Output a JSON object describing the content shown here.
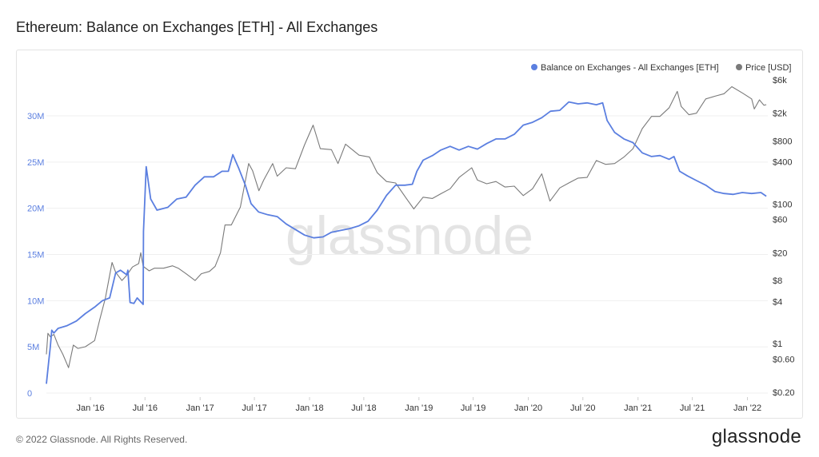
{
  "page_title": "Ethereum: Balance on Exchanges [ETH] - All Exchanges",
  "watermark": "glassnode",
  "footer": {
    "copyright": "© 2022 Glassnode. All Rights Reserved.",
    "brand": "glassnode"
  },
  "colors": {
    "balance": "#5b7fe0",
    "price": "#7a7a7a",
    "left_axis_text": "#5b7fe0",
    "right_axis_text": "#333333"
  },
  "chart_data": {
    "type": "line",
    "title": "Ethereum: Balance on Exchanges [ETH] - All Exchanges",
    "legend_position": "top-right",
    "grid": "horizontal",
    "x_type": "date",
    "x_range": [
      "2015-08-07",
      "2022-03-10"
    ],
    "x_ticks": [
      {
        "date": "2016-01-01",
        "label": "Jan '16"
      },
      {
        "date": "2016-07-01",
        "label": "Jul '16"
      },
      {
        "date": "2017-01-01",
        "label": "Jan '17"
      },
      {
        "date": "2017-07-01",
        "label": "Jul '17"
      },
      {
        "date": "2018-01-01",
        "label": "Jan '18"
      },
      {
        "date": "2018-07-01",
        "label": "Jul '18"
      },
      {
        "date": "2019-01-01",
        "label": "Jan '19"
      },
      {
        "date": "2019-07-01",
        "label": "Jul '19"
      },
      {
        "date": "2020-01-01",
        "label": "Jan '20"
      },
      {
        "date": "2020-07-01",
        "label": "Jul '20"
      },
      {
        "date": "2021-01-01",
        "label": "Jan '21"
      },
      {
        "date": "2021-07-01",
        "label": "Jul '21"
      },
      {
        "date": "2022-01-01",
        "label": "Jan '22"
      }
    ],
    "y_left": {
      "ylim": [
        0,
        35000000
      ],
      "ticks": [
        {
          "value": 0,
          "label": "0"
        },
        {
          "value": 5000000,
          "label": "5M"
        },
        {
          "value": 10000000,
          "label": "10M"
        },
        {
          "value": 15000000,
          "label": "15M"
        },
        {
          "value": 20000000,
          "label": "20M"
        },
        {
          "value": 25000000,
          "label": "25M"
        },
        {
          "value": 30000000,
          "label": "30M"
        }
      ]
    },
    "y_right": {
      "scale": "log",
      "ylim": [
        0.18,
        6500
      ],
      "ticks": [
        {
          "value": 0.2,
          "label": "$0.20"
        },
        {
          "value": 0.6,
          "label": "$0.60"
        },
        {
          "value": 1,
          "label": "$1"
        },
        {
          "value": 4,
          "label": "$4"
        },
        {
          "value": 8,
          "label": "$8"
        },
        {
          "value": 20,
          "label": "$20"
        },
        {
          "value": 60,
          "label": "$60"
        },
        {
          "value": 100,
          "label": "$100"
        },
        {
          "value": 400,
          "label": "$400"
        },
        {
          "value": 800,
          "label": "$800"
        },
        {
          "value": 2000,
          "label": "$2k"
        },
        {
          "value": 6000,
          "label": "$6k"
        }
      ]
    },
    "series": [
      {
        "name": "Balance on Exchanges - All Exchanges [ETH]",
        "axis": "left",
        "color": "#5b7fe0",
        "points": [
          [
            "2015-08-07",
            1000000
          ],
          [
            "2015-08-15",
            3500000
          ],
          [
            "2015-08-20",
            5000000
          ],
          [
            "2015-08-25",
            6800000
          ],
          [
            "2015-09-01",
            6500000
          ],
          [
            "2015-09-15",
            7000000
          ],
          [
            "2015-10-15",
            7300000
          ],
          [
            "2015-11-15",
            7800000
          ],
          [
            "2015-12-15",
            8600000
          ],
          [
            "2016-01-15",
            9300000
          ],
          [
            "2016-02-10",
            10000000
          ],
          [
            "2016-03-05",
            10300000
          ],
          [
            "2016-03-25",
            13000000
          ],
          [
            "2016-04-10",
            13300000
          ],
          [
            "2016-05-01",
            12800000
          ],
          [
            "2016-05-05",
            13300000
          ],
          [
            "2016-05-12",
            9800000
          ],
          [
            "2016-05-25",
            9700000
          ],
          [
            "2016-06-05",
            10300000
          ],
          [
            "2016-06-25",
            9600000
          ],
          [
            "2016-06-26",
            17500000
          ],
          [
            "2016-07-05",
            24500000
          ],
          [
            "2016-07-20",
            21000000
          ],
          [
            "2016-08-10",
            19800000
          ],
          [
            "2016-09-15",
            20100000
          ],
          [
            "2016-10-15",
            21000000
          ],
          [
            "2016-11-15",
            21200000
          ],
          [
            "2016-12-15",
            22500000
          ],
          [
            "2017-01-15",
            23400000
          ],
          [
            "2017-02-15",
            23400000
          ],
          [
            "2017-03-15",
            24000000
          ],
          [
            "2017-04-05",
            24000000
          ],
          [
            "2017-04-20",
            25800000
          ],
          [
            "2017-05-10",
            24300000
          ],
          [
            "2017-06-01",
            22500000
          ],
          [
            "2017-06-20",
            20500000
          ],
          [
            "2017-07-15",
            19600000
          ],
          [
            "2017-08-15",
            19300000
          ],
          [
            "2017-09-15",
            19100000
          ],
          [
            "2017-10-15",
            18300000
          ],
          [
            "2017-11-15",
            17700000
          ],
          [
            "2017-12-15",
            17100000
          ],
          [
            "2018-01-15",
            16800000
          ],
          [
            "2018-02-15",
            16900000
          ],
          [
            "2018-03-15",
            17400000
          ],
          [
            "2018-04-15",
            17600000
          ],
          [
            "2018-05-15",
            17800000
          ],
          [
            "2018-06-15",
            18100000
          ],
          [
            "2018-07-15",
            18600000
          ],
          [
            "2018-08-15",
            19800000
          ],
          [
            "2018-09-15",
            21400000
          ],
          [
            "2018-10-15",
            22500000
          ],
          [
            "2018-11-15",
            22500000
          ],
          [
            "2018-12-10",
            22600000
          ],
          [
            "2018-12-25",
            24000000
          ],
          [
            "2019-01-15",
            25200000
          ],
          [
            "2019-02-15",
            25700000
          ],
          [
            "2019-03-15",
            26300000
          ],
          [
            "2019-04-15",
            26700000
          ],
          [
            "2019-05-15",
            26300000
          ],
          [
            "2019-06-15",
            26700000
          ],
          [
            "2019-07-15",
            26400000
          ],
          [
            "2019-08-15",
            27000000
          ],
          [
            "2019-09-15",
            27500000
          ],
          [
            "2019-10-15",
            27500000
          ],
          [
            "2019-11-15",
            28000000
          ],
          [
            "2019-12-15",
            29000000
          ],
          [
            "2020-01-15",
            29300000
          ],
          [
            "2020-02-15",
            29800000
          ],
          [
            "2020-03-15",
            30500000
          ],
          [
            "2020-04-15",
            30600000
          ],
          [
            "2020-05-15",
            31500000
          ],
          [
            "2020-06-15",
            31300000
          ],
          [
            "2020-07-15",
            31400000
          ],
          [
            "2020-08-15",
            31200000
          ],
          [
            "2020-09-05",
            31400000
          ],
          [
            "2020-09-20",
            29500000
          ],
          [
            "2020-10-15",
            28200000
          ],
          [
            "2020-11-15",
            27500000
          ],
          [
            "2020-12-15",
            27100000
          ],
          [
            "2021-01-15",
            26000000
          ],
          [
            "2021-02-15",
            25600000
          ],
          [
            "2021-03-15",
            25700000
          ],
          [
            "2021-04-15",
            25300000
          ],
          [
            "2021-05-01",
            25600000
          ],
          [
            "2021-05-20",
            24000000
          ],
          [
            "2021-06-15",
            23500000
          ],
          [
            "2021-07-15",
            23000000
          ],
          [
            "2021-08-15",
            22500000
          ],
          [
            "2021-09-15",
            21800000
          ],
          [
            "2021-10-15",
            21600000
          ],
          [
            "2021-11-15",
            21500000
          ],
          [
            "2021-12-15",
            21700000
          ],
          [
            "2022-01-15",
            21600000
          ],
          [
            "2022-02-15",
            21700000
          ],
          [
            "2022-03-05",
            21300000
          ]
        ]
      },
      {
        "name": "Price [USD]",
        "axis": "right",
        "color": "#7a7a7a",
        "points": [
          [
            "2015-08-07",
            0.7
          ],
          [
            "2015-08-12",
            1.4
          ],
          [
            "2015-08-20",
            1.25
          ],
          [
            "2015-09-01",
            1.35
          ],
          [
            "2015-09-15",
            0.95
          ],
          [
            "2015-10-01",
            0.7
          ],
          [
            "2015-10-20",
            0.45
          ],
          [
            "2015-11-05",
            0.95
          ],
          [
            "2015-11-20",
            0.85
          ],
          [
            "2015-12-15",
            0.9
          ],
          [
            "2016-01-15",
            1.1
          ],
          [
            "2016-02-01",
            2.2
          ],
          [
            "2016-02-20",
            4.5
          ],
          [
            "2016-03-13",
            14.5
          ],
          [
            "2016-03-25",
            10.5
          ],
          [
            "2016-04-15",
            8.0
          ],
          [
            "2016-05-01",
            9.5
          ],
          [
            "2016-05-20",
            12.5
          ],
          [
            "2016-06-10",
            14.0
          ],
          [
            "2016-06-17",
            20.0
          ],
          [
            "2016-06-25",
            12.8
          ],
          [
            "2016-07-15",
            11.0
          ],
          [
            "2016-08-01",
            12.0
          ],
          [
            "2016-09-01",
            12.0
          ],
          [
            "2016-10-01",
            13.0
          ],
          [
            "2016-10-20",
            12.0
          ],
          [
            "2016-11-15",
            10.0
          ],
          [
            "2016-12-15",
            8.0
          ],
          [
            "2017-01-05",
            10.0
          ],
          [
            "2017-02-01",
            10.8
          ],
          [
            "2017-02-20",
            12.8
          ],
          [
            "2017-03-10",
            20.0
          ],
          [
            "2017-03-25",
            50.0
          ],
          [
            "2017-04-15",
            50.0
          ],
          [
            "2017-05-15",
            90.0
          ],
          [
            "2017-06-12",
            380.0
          ],
          [
            "2017-06-25",
            300.0
          ],
          [
            "2017-07-16",
            155.0
          ],
          [
            "2017-08-01",
            220.0
          ],
          [
            "2017-08-31",
            380.0
          ],
          [
            "2017-09-15",
            250.0
          ],
          [
            "2017-10-15",
            330.0
          ],
          [
            "2017-11-15",
            320.0
          ],
          [
            "2017-12-15",
            700.0
          ],
          [
            "2018-01-13",
            1350.0
          ],
          [
            "2018-02-06",
            620.0
          ],
          [
            "2018-03-15",
            600.0
          ],
          [
            "2018-04-06",
            380.0
          ],
          [
            "2018-05-01",
            720.0
          ],
          [
            "2018-06-15",
            500.0
          ],
          [
            "2018-07-20",
            470.0
          ],
          [
            "2018-08-15",
            280.0
          ],
          [
            "2018-09-15",
            210.0
          ],
          [
            "2018-10-15",
            200.0
          ],
          [
            "2018-11-20",
            120.0
          ],
          [
            "2018-12-15",
            85.0
          ],
          [
            "2019-01-15",
            125.0
          ],
          [
            "2019-02-15",
            120.0
          ],
          [
            "2019-03-15",
            140.0
          ],
          [
            "2019-04-15",
            165.0
          ],
          [
            "2019-05-15",
            240.0
          ],
          [
            "2019-06-26",
            330.0
          ],
          [
            "2019-07-15",
            220.0
          ],
          [
            "2019-08-15",
            195.0
          ],
          [
            "2019-09-15",
            210.0
          ],
          [
            "2019-10-15",
            175.0
          ],
          [
            "2019-11-15",
            180.0
          ],
          [
            "2019-12-15",
            132.0
          ],
          [
            "2020-01-15",
            165.0
          ],
          [
            "2020-02-15",
            270.0
          ],
          [
            "2020-03-13",
            110.0
          ],
          [
            "2020-04-15",
            170.0
          ],
          [
            "2020-05-15",
            200.0
          ],
          [
            "2020-06-15",
            235.0
          ],
          [
            "2020-07-15",
            240.0
          ],
          [
            "2020-08-15",
            420.0
          ],
          [
            "2020-09-15",
            370.0
          ],
          [
            "2020-10-15",
            380.0
          ],
          [
            "2020-11-15",
            470.0
          ],
          [
            "2020-12-15",
            620.0
          ],
          [
            "2021-01-15",
            1200.0
          ],
          [
            "2021-02-15",
            1800.0
          ],
          [
            "2021-03-15",
            1800.0
          ],
          [
            "2021-04-15",
            2400.0
          ],
          [
            "2021-05-12",
            4100.0
          ],
          [
            "2021-05-25",
            2500.0
          ],
          [
            "2021-06-20",
            1900.0
          ],
          [
            "2021-07-15",
            2000.0
          ],
          [
            "2021-08-15",
            3200.0
          ],
          [
            "2021-09-15",
            3500.0
          ],
          [
            "2021-10-15",
            3800.0
          ],
          [
            "2021-11-10",
            4800.0
          ],
          [
            "2021-12-15",
            3900.0
          ],
          [
            "2022-01-15",
            3200.0
          ],
          [
            "2022-01-24",
            2300.0
          ],
          [
            "2022-02-10",
            3100.0
          ],
          [
            "2022-02-25",
            2600.0
          ],
          [
            "2022-03-05",
            2650.0
          ]
        ]
      }
    ]
  }
}
